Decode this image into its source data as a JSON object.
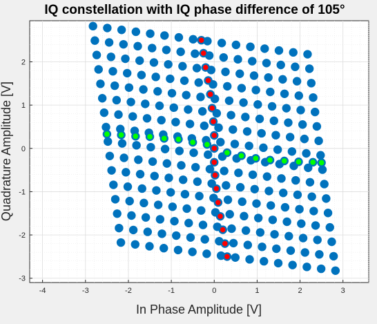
{
  "chart_data": {
    "type": "scatter",
    "title": "IQ constellation with IQ phase difference of 105°",
    "xlabel": "In Phase Amplitude [V]",
    "ylabel": "Quadrature Amplitude [V]",
    "xlim": [
      -4.3,
      3.6
    ],
    "ylim": [
      -3.1,
      2.95
    ],
    "xticks": [
      -4,
      -3,
      -2,
      -1,
      0,
      1,
      2,
      3
    ],
    "yticks": [
      -3,
      -2,
      -1,
      0,
      1,
      2
    ],
    "grid": "on",
    "minor_grid": "on",
    "constellation": {
      "levels": [
        -2.5,
        -2.1667,
        -1.8333,
        -1.5,
        -1.1667,
        -0.8333,
        -0.5,
        -0.1667,
        0.1667,
        0.5,
        0.8333,
        1.1667,
        1.5,
        1.8333,
        2.1667,
        2.5
      ],
      "i_axis": [
        1,
        -0.13
      ],
      "q_axis": [
        -0.13,
        1
      ],
      "offset": [
        0.0,
        0.0
      ]
    },
    "series": [
      {
        "role": "all-symbols",
        "color": "#0072bd",
        "rule": "I = level_i*i_axis + level_q*q_axis for every level pair"
      },
      {
        "role": "in-phase-only",
        "color": "#00ff00",
        "edge": "#0072bd",
        "rule": "level_q = 0 crossing (center row)"
      },
      {
        "role": "quadrature-only",
        "color": "#ff0000",
        "edge": "#0072bd",
        "rule": "level_i = 0 crossing (center column)"
      }
    ],
    "highlight_points": {
      "in_phase": [
        [
          -2.5,
          0.33
        ],
        [
          -2.1667,
          0.31
        ],
        [
          -1.8333,
          0.28
        ],
        [
          -1.5,
          0.27
        ],
        [
          -1.1667,
          0.23
        ],
        [
          -0.8333,
          0.21
        ],
        [
          -0.5,
          0.14
        ],
        [
          -0.1667,
          0.09
        ],
        [
          0.0,
          0.0
        ],
        [
          0.3,
          -0.1
        ],
        [
          0.6333,
          -0.17
        ],
        [
          0.9667,
          -0.23
        ],
        [
          1.3,
          -0.27
        ],
        [
          1.6333,
          -0.29
        ],
        [
          1.9667,
          -0.31
        ],
        [
          2.3,
          -0.32
        ],
        [
          2.5,
          -0.33
        ]
      ],
      "quadrature": [
        [
          -0.3,
          2.5
        ],
        [
          -0.25,
          2.2
        ],
        [
          -0.2,
          1.87
        ],
        [
          -0.14,
          1.57
        ],
        [
          -0.09,
          1.25
        ],
        [
          -0.05,
          0.93
        ],
        [
          -0.02,
          0.62
        ],
        [
          0.0,
          0.3
        ],
        [
          0.0,
          0.0
        ],
        [
          0.0,
          -0.32
        ],
        [
          0.02,
          -0.62
        ],
        [
          0.05,
          -0.93
        ],
        [
          0.09,
          -1.25
        ],
        [
          0.14,
          -1.57
        ],
        [
          0.2,
          -1.88
        ],
        [
          0.25,
          -2.2
        ],
        [
          0.3,
          -2.5
        ]
      ]
    }
  }
}
